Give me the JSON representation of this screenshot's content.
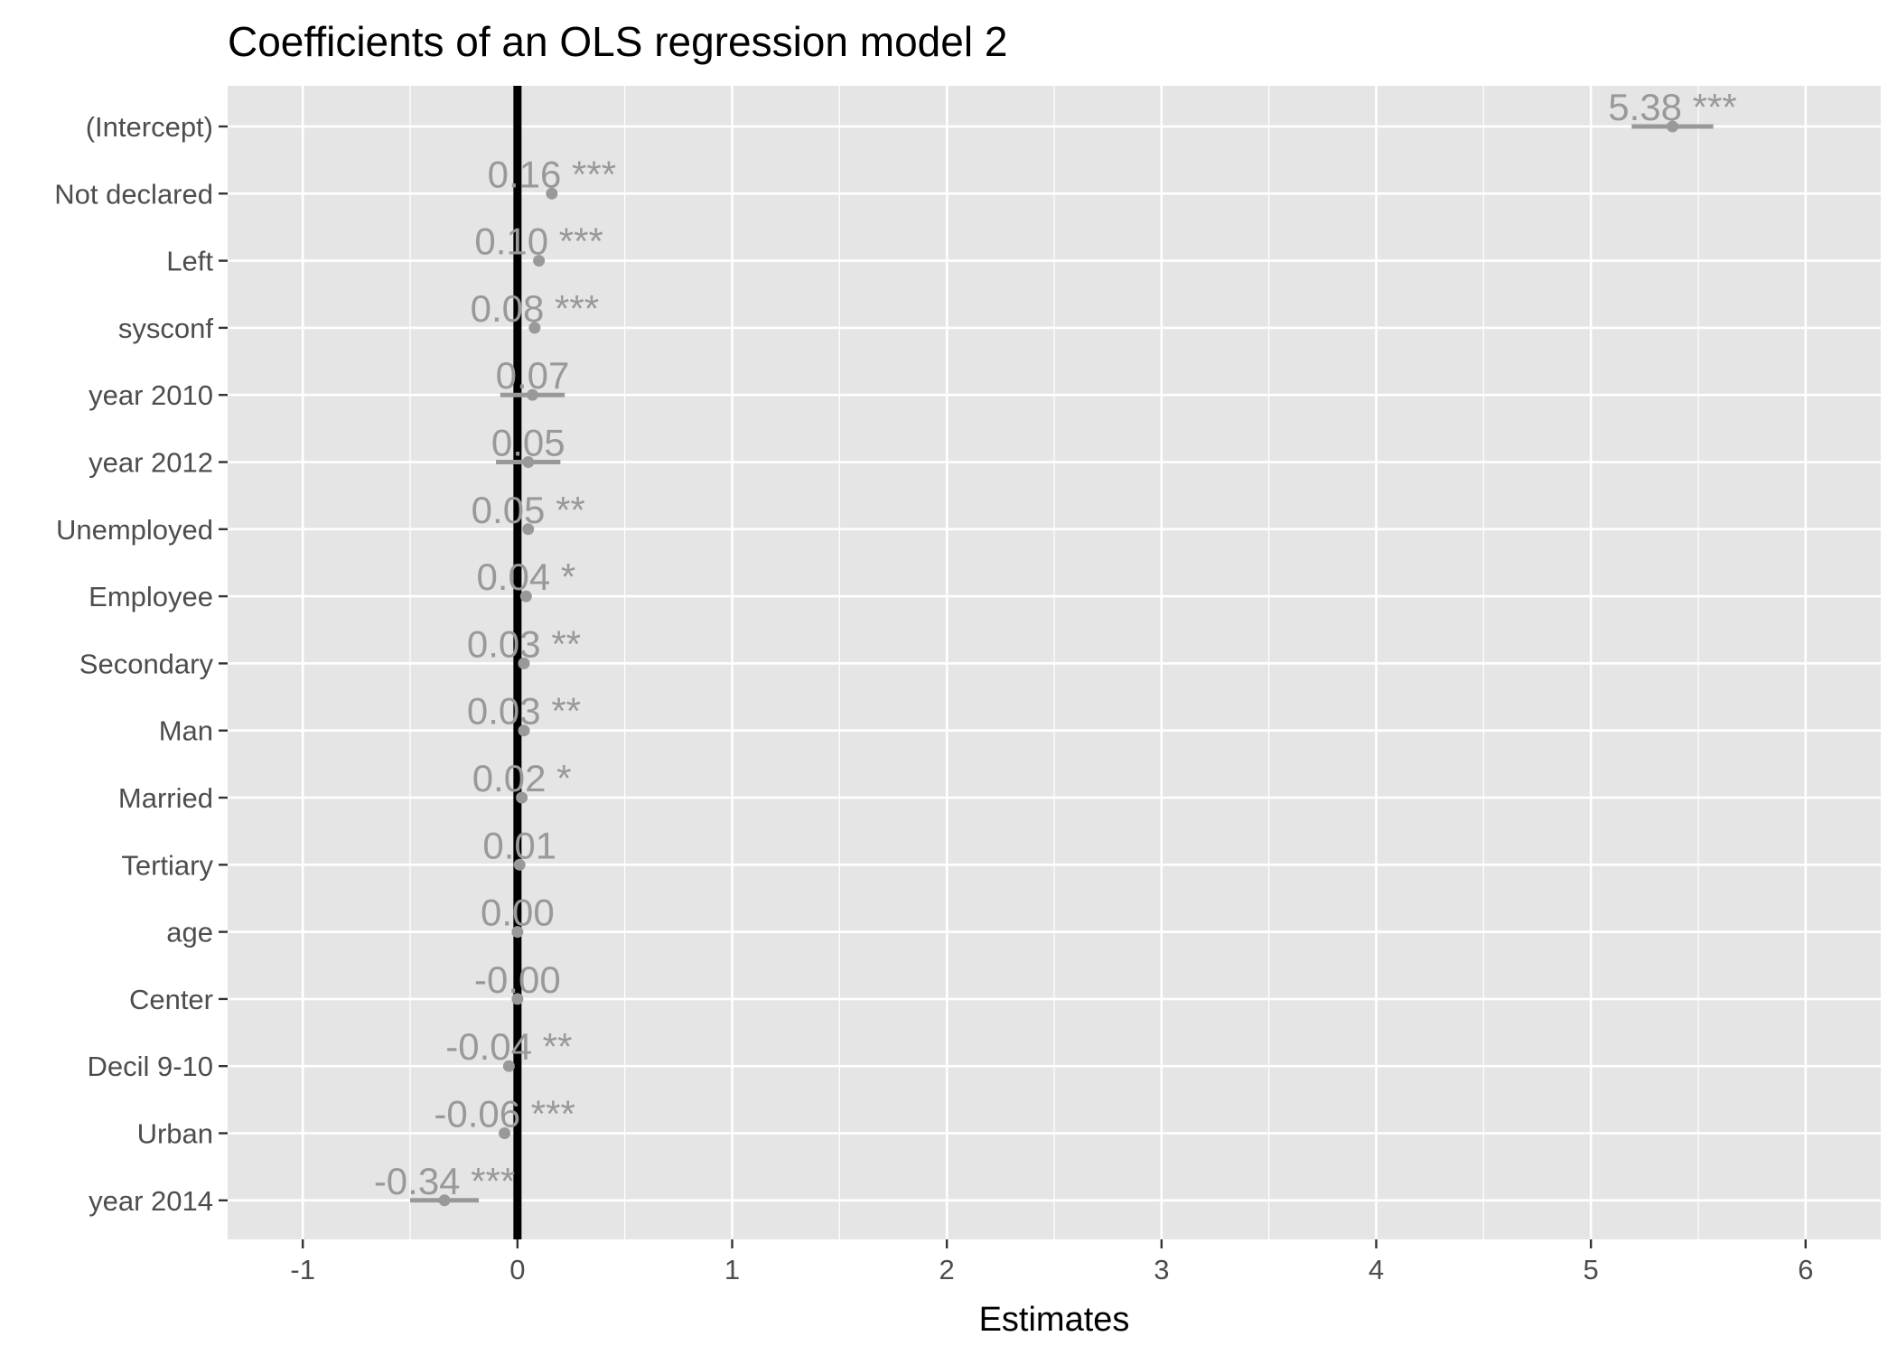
{
  "chart_data": {
    "type": "scatter",
    "title": "Coefficients of an OLS regression model 2",
    "xlabel": "Estimates",
    "ylabel": "",
    "xlim": [
      -1.35,
      6.35
    ],
    "x_ticks": [
      -1,
      0,
      1,
      2,
      3,
      4,
      5,
      6
    ],
    "x_tick_labels": [
      "-1",
      "0",
      "1",
      "2",
      "3",
      "4",
      "5",
      "6"
    ],
    "grid": true,
    "reference_line": 0,
    "colors": {
      "panel": "#e5e5e5",
      "grid": "#ffffff",
      "point": "#999999",
      "zero_line": "#000000"
    },
    "terms": [
      {
        "term": "(Intercept)",
        "estimate": 5.38,
        "ci": [
          5.19,
          5.57
        ],
        "label": "5.38 ***"
      },
      {
        "term": "Not declared",
        "estimate": 0.16,
        "ci": [
          0.14,
          0.18
        ],
        "label": "0.16 ***"
      },
      {
        "term": "Left",
        "estimate": 0.1,
        "ci": [
          0.09,
          0.11
        ],
        "label": "0.10 ***"
      },
      {
        "term": "sysconf",
        "estimate": 0.08,
        "ci": [
          0.07,
          0.09
        ],
        "label": "0.08 ***"
      },
      {
        "term": "year 2010",
        "estimate": 0.07,
        "ci": [
          -0.08,
          0.22
        ],
        "label": "0.07"
      },
      {
        "term": "year 2012",
        "estimate": 0.05,
        "ci": [
          -0.1,
          0.2
        ],
        "label": "0.05"
      },
      {
        "term": "Unemployed",
        "estimate": 0.05,
        "ci": [
          0.03,
          0.06
        ],
        "label": "0.05 **"
      },
      {
        "term": "Employee",
        "estimate": 0.04,
        "ci": [
          0.03,
          0.05
        ],
        "label": "0.04 *"
      },
      {
        "term": "Secondary",
        "estimate": 0.03,
        "ci": [
          0.02,
          0.04
        ],
        "label": "0.03 **"
      },
      {
        "term": "Man",
        "estimate": 0.03,
        "ci": [
          0.02,
          0.04
        ],
        "label": "0.03 **"
      },
      {
        "term": "Married",
        "estimate": 0.02,
        "ci": [
          0.01,
          0.03
        ],
        "label": "0.02 *"
      },
      {
        "term": "Tertiary",
        "estimate": 0.01,
        "ci": [
          0.0,
          0.02
        ],
        "label": "0.01"
      },
      {
        "term": "age",
        "estimate": 0.0,
        "ci": [
          0.0,
          0.0
        ],
        "label": "0.00"
      },
      {
        "term": "Center",
        "estimate": -0.0,
        "ci": [
          -0.01,
          0.01
        ],
        "label": "-0.00"
      },
      {
        "term": "Decil 9-10",
        "estimate": -0.04,
        "ci": [
          -0.05,
          -0.03
        ],
        "label": "-0.04 **"
      },
      {
        "term": "Urban",
        "estimate": -0.06,
        "ci": [
          -0.07,
          -0.05
        ],
        "label": "-0.06 ***"
      },
      {
        "term": "year 2014",
        "estimate": -0.34,
        "ci": [
          -0.5,
          -0.18
        ],
        "label": "-0.34 ***"
      }
    ]
  }
}
